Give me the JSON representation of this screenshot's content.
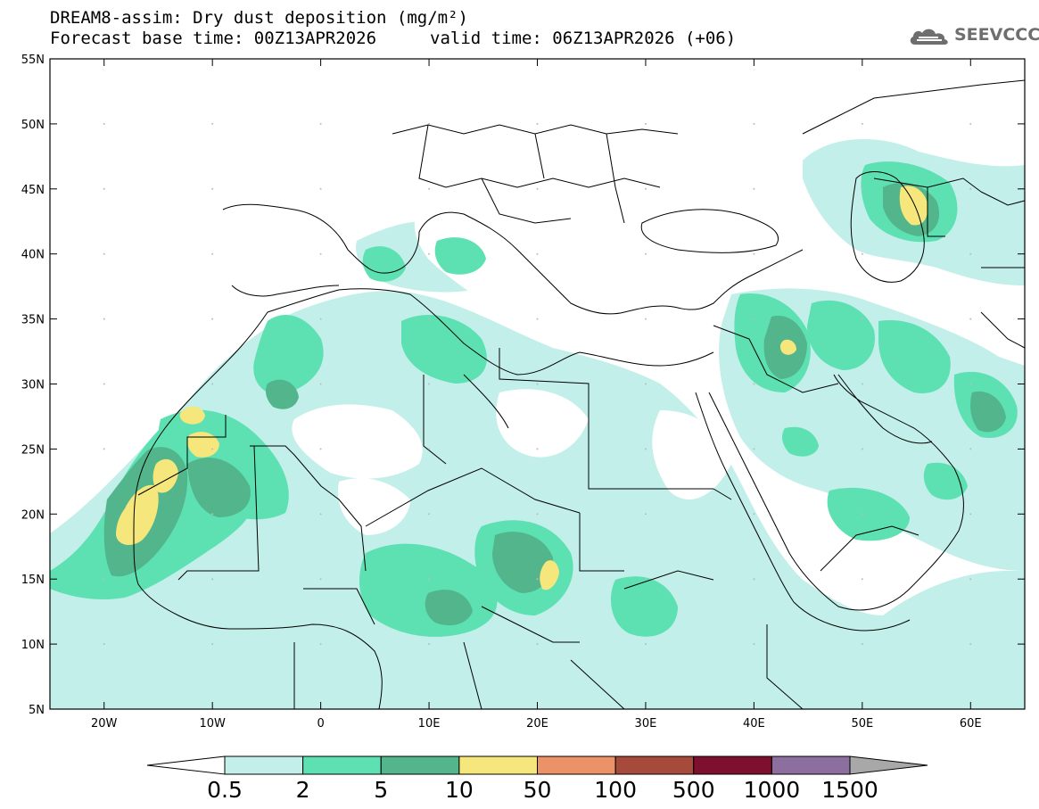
{
  "header": {
    "title": "DREAM8-assim: Dry dust deposition (mg/m²)",
    "base_time": "Forecast base time: 00Z13APR2026",
    "valid_time": "valid time: 06Z13APR2026 (+06)"
  },
  "logo": {
    "text": "SEEVCCC",
    "icon": "cloud-logo-icon"
  },
  "map": {
    "lat_labels": [
      "55N",
      "50N",
      "45N",
      "40N",
      "35N",
      "30N",
      "25N",
      "20N",
      "15N",
      "10N",
      "5N"
    ],
    "lon_labels": [
      "20W",
      "10W",
      "0",
      "10E",
      "20E",
      "30E",
      "40E",
      "50E",
      "60E"
    ],
    "lat_range": [
      5,
      55
    ],
    "lon_range": [
      -25,
      65
    ]
  },
  "colorbar": {
    "labels": [
      "0.5",
      "2",
      "5",
      "10",
      "50",
      "100",
      "500",
      "1000",
      "1500"
    ],
    "colors": [
      "#ffffff",
      "#c2efe9",
      "#5de0b2",
      "#52b58c",
      "#f5e77b",
      "#ec9268",
      "#a64a3b",
      "#7e0f2e",
      "#8c6f9e",
      "#a8a8a8"
    ]
  },
  "dust_colors": {
    "light": "#c2efe9",
    "medium": "#5de0b2",
    "dark": "#52b58c",
    "yellow": "#f5e77b"
  }
}
